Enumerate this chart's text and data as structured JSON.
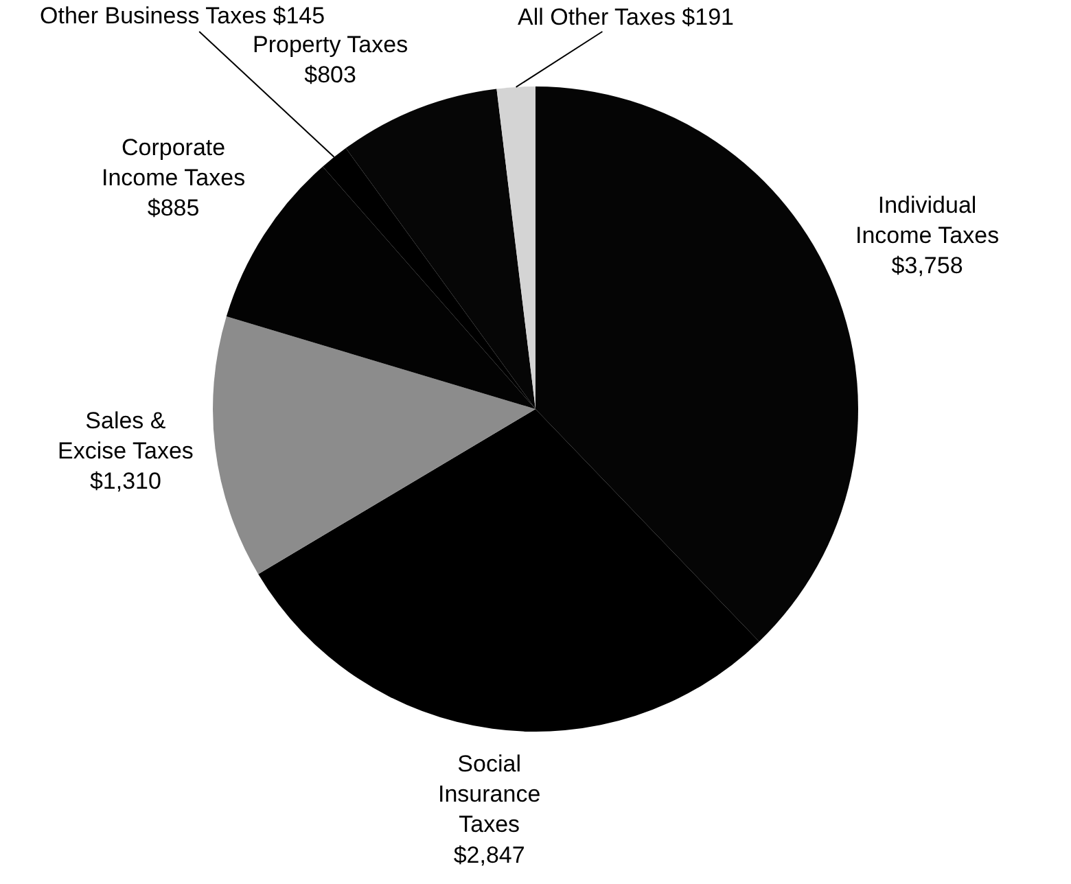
{
  "chart_data": {
    "type": "pie",
    "categories": [
      "Individual Income Taxes",
      "Social Insurance Taxes",
      "Sales & Excise Taxes",
      "Corporate Income Taxes",
      "Other Business Taxes",
      "Property Taxes",
      "All Other Taxes"
    ],
    "values": [
      3758,
      2847,
      1310,
      885,
      145,
      803,
      191
    ],
    "value_labels": [
      "$3,758",
      "$2,847",
      "$1,310",
      "$885",
      "$145",
      "$803",
      "$191"
    ],
    "colors": [
      "#050505",
      "#000000",
      "#8c8c8c",
      "#030303",
      "#000000",
      "#060606",
      "#d4d4d4"
    ],
    "legend": false
  }
}
